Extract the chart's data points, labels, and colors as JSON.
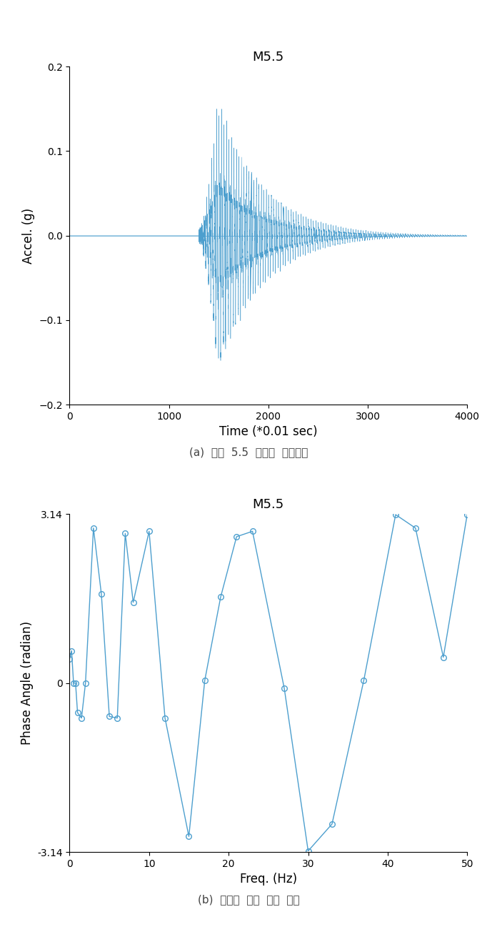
{
  "title1": "M5.5",
  "title2": "M5.5",
  "xlabel1": "Time (*0.01 sec)",
  "ylabel1": "Accel. (g)",
  "xlabel2": "Freq. (Hz)",
  "ylabel2": "Phase Angle (radian)",
  "xlim1": [
    0,
    4000
  ],
  "ylim1": [
    -0.2,
    0.2
  ],
  "xlim2": [
    0,
    50
  ],
  "ylim2": [
    -3.14,
    3.14
  ],
  "yticks1": [
    -0.2,
    -0.1,
    0.0,
    0.1,
    0.2
  ],
  "xticks1": [
    0,
    1000,
    2000,
    3000,
    4000
  ],
  "yticks2": [
    -3.14,
    0,
    3.14
  ],
  "xticks2": [
    0,
    10,
    20,
    30,
    40,
    50
  ],
  "caption1": "(a)  규모  5.5  지진파  시간이력",
  "caption2": "(b)  주파수  영역  위상  크기",
  "line_color": "#4d9fce",
  "bg_color": "#ffffff",
  "phase_x": [
    0.0,
    0.25,
    0.5,
    0.75,
    1.0,
    1.5,
    2.0,
    3.0,
    4.0,
    5.0,
    6.0,
    7.0,
    8.0,
    10.0,
    12.0,
    15.0,
    17.0,
    19.0,
    21.0,
    23.0,
    27.0,
    30.0,
    33.0,
    37.0,
    41.0,
    43.5,
    47.0,
    50.0
  ],
  "phase_y": [
    0.45,
    0.6,
    0.0,
    0.0,
    -0.55,
    -0.65,
    0.0,
    2.88,
    1.65,
    -0.62,
    -0.65,
    2.78,
    1.5,
    2.82,
    -0.65,
    -2.85,
    0.05,
    1.6,
    2.72,
    2.82,
    -0.1,
    -3.12,
    -2.62,
    0.05,
    3.13,
    2.88,
    0.48,
    3.13
  ]
}
